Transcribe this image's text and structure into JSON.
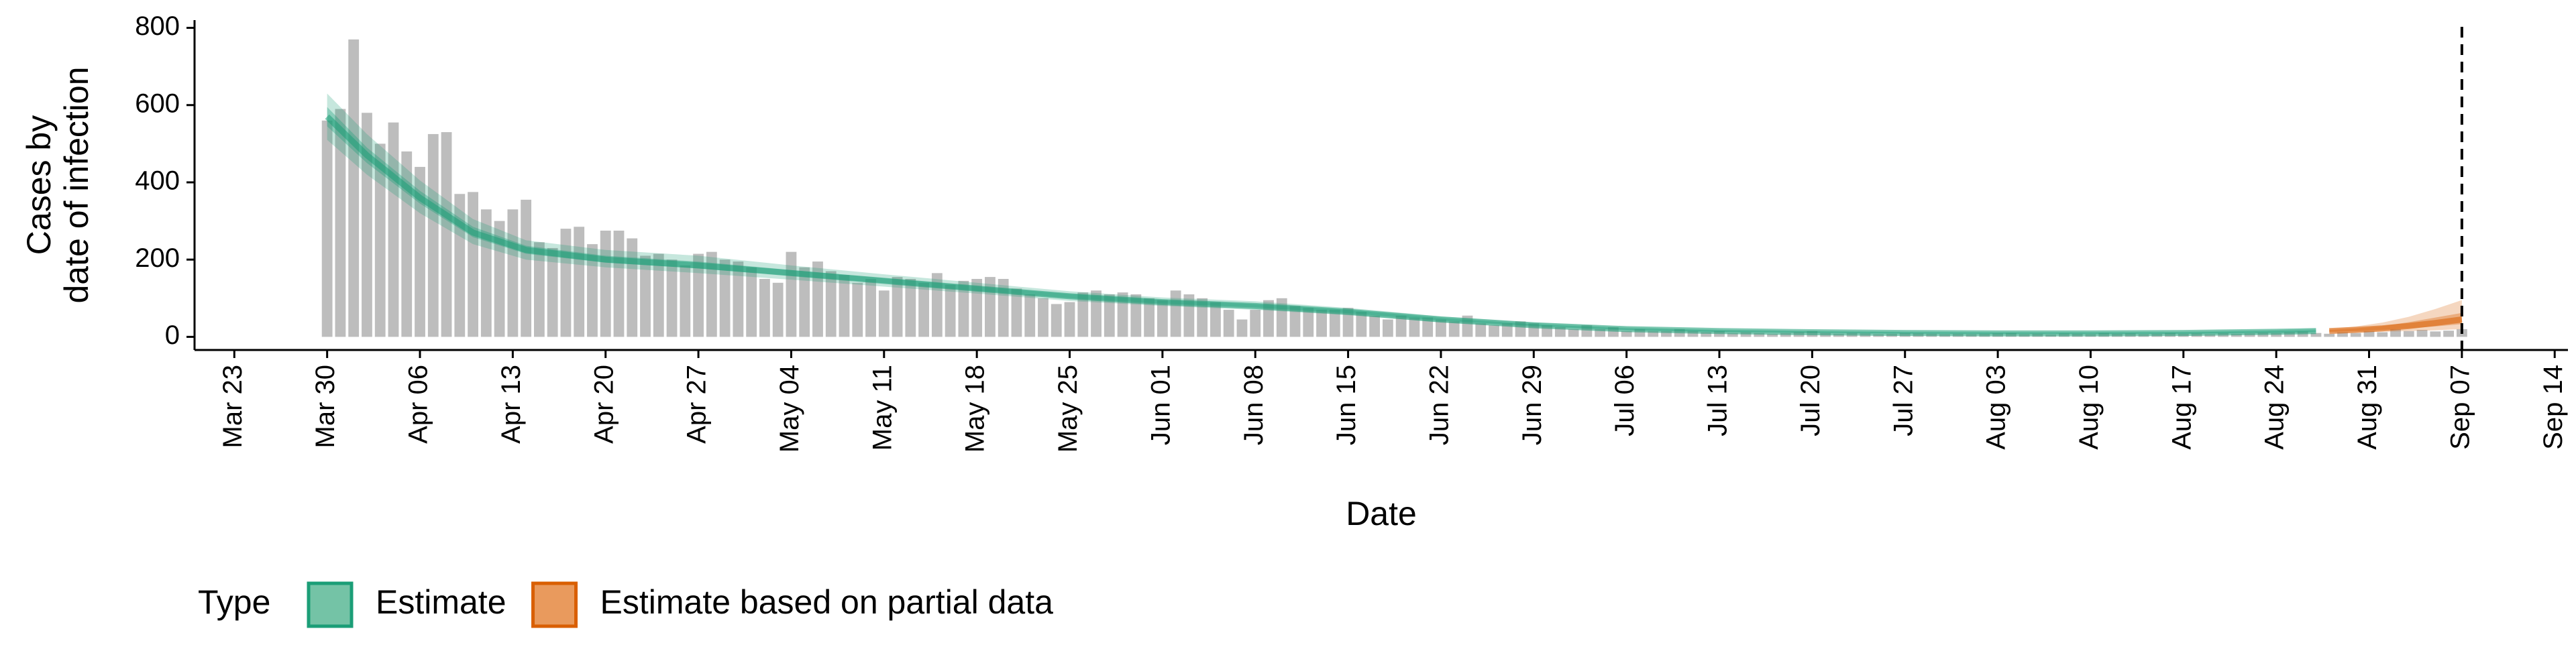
{
  "chart_data": {
    "type": "bar",
    "xlabel": "Date",
    "ylabel": [
      "Cases by",
      "date of infection"
    ],
    "legend_title": "Type",
    "bar_color": "#bdbdbd",
    "x": [
      "Mar 30",
      "Mar 31",
      "Apr 01",
      "Apr 02",
      "Apr 03",
      "Apr 04",
      "Apr 05",
      "Apr 06",
      "Apr 07",
      "Apr 08",
      "Apr 09",
      "Apr 10",
      "Apr 11",
      "Apr 12",
      "Apr 13",
      "Apr 14",
      "Apr 15",
      "Apr 16",
      "Apr 17",
      "Apr 18",
      "Apr 19",
      "Apr 20",
      "Apr 21",
      "Apr 22",
      "Apr 23",
      "Apr 24",
      "Apr 25",
      "Apr 26",
      "Apr 27",
      "Apr 28",
      "Apr 29",
      "Apr 30",
      "May 01",
      "May 02",
      "May 03",
      "May 04",
      "May 05",
      "May 06",
      "May 07",
      "May 08",
      "May 09",
      "May 10",
      "May 11",
      "May 12",
      "May 13",
      "May 14",
      "May 15",
      "May 16",
      "May 17",
      "May 18",
      "May 19",
      "May 20",
      "May 21",
      "May 22",
      "May 23",
      "May 24",
      "May 25",
      "May 26",
      "May 27",
      "May 28",
      "May 29",
      "May 30",
      "May 31",
      "Jun 01",
      "Jun 02",
      "Jun 03",
      "Jun 04",
      "Jun 05",
      "Jun 06",
      "Jun 07",
      "Jun 08",
      "Jun 09",
      "Jun 10",
      "Jun 11",
      "Jun 12",
      "Jun 13",
      "Jun 14",
      "Jun 15",
      "Jun 16",
      "Jun 17",
      "Jun 18",
      "Jun 19",
      "Jun 20",
      "Jun 21",
      "Jun 22",
      "Jun 23",
      "Jun 24",
      "Jun 25",
      "Jun 26",
      "Jun 27",
      "Jun 28",
      "Jun 29",
      "Jun 30",
      "Jul 01",
      "Jul 02",
      "Jul 03",
      "Jul 04",
      "Jul 05",
      "Jul 06",
      "Jul 07",
      "Jul 08",
      "Jul 09",
      "Jul 10",
      "Jul 11",
      "Jul 12",
      "Jul 13",
      "Jul 14",
      "Jul 15",
      "Jul 16",
      "Jul 17",
      "Jul 18",
      "Jul 19",
      "Jul 20",
      "Jul 21",
      "Jul 22",
      "Jul 23",
      "Jul 24",
      "Jul 25",
      "Jul 26",
      "Jul 27",
      "Jul 28",
      "Jul 29",
      "Jul 30",
      "Jul 31",
      "Aug 01",
      "Aug 02",
      "Aug 03",
      "Aug 04",
      "Aug 05",
      "Aug 06",
      "Aug 07",
      "Aug 08",
      "Aug 09",
      "Aug 10",
      "Aug 11",
      "Aug 12",
      "Aug 13",
      "Aug 14",
      "Aug 15",
      "Aug 16",
      "Aug 17",
      "Aug 18",
      "Aug 19",
      "Aug 20",
      "Aug 21",
      "Aug 22",
      "Aug 23",
      "Aug 24",
      "Aug 25",
      "Aug 26",
      "Aug 27",
      "Aug 28",
      "Aug 29",
      "Aug 30",
      "Aug 31",
      "Sep 01",
      "Sep 02",
      "Sep 03",
      "Sep 04",
      "Sep 05",
      "Sep 06",
      "Sep 07"
    ],
    "values": [
      560,
      590,
      770,
      580,
      500,
      555,
      480,
      440,
      525,
      530,
      370,
      375,
      330,
      300,
      330,
      355,
      245,
      230,
      280,
      285,
      240,
      275,
      275,
      255,
      210,
      215,
      200,
      185,
      215,
      220,
      200,
      195,
      180,
      150,
      140,
      220,
      180,
      195,
      170,
      160,
      140,
      150,
      120,
      155,
      150,
      140,
      165,
      135,
      145,
      150,
      155,
      150,
      125,
      110,
      100,
      85,
      90,
      115,
      120,
      110,
      115,
      110,
      100,
      95,
      120,
      110,
      100,
      90,
      70,
      45,
      70,
      95,
      100,
      80,
      75,
      70,
      70,
      75,
      65,
      55,
      45,
      55,
      50,
      50,
      45,
      40,
      55,
      35,
      30,
      35,
      40,
      35,
      30,
      25,
      20,
      30,
      20,
      25,
      15,
      20,
      15,
      15,
      20,
      15,
      12,
      15,
      10,
      12,
      10,
      8,
      10,
      12,
      15,
      10,
      8,
      10,
      9,
      7,
      8,
      10,
      9,
      8,
      7,
      8,
      7,
      8,
      9,
      10,
      7,
      8,
      6,
      9,
      8,
      7,
      10,
      8,
      9,
      7,
      8,
      10,
      8,
      9,
      7,
      10,
      8,
      9,
      11,
      10,
      12,
      14,
      10,
      8,
      12,
      10,
      15,
      12,
      20,
      15,
      18,
      14,
      16,
      20
    ],
    "series": [
      {
        "name": "Estimate",
        "color": "#1b9e77",
        "legend_color": "#74c3a6",
        "x": [
          "Mar 30",
          "Apr 02",
          "Apr 06",
          "Apr 10",
          "Apr 14",
          "Apr 20",
          "Apr 27",
          "May 04",
          "May 11",
          "May 18",
          "May 25",
          "Jun 01",
          "Jun 08",
          "Jun 15",
          "Jun 22",
          "Jun 29",
          "Jul 06",
          "Jul 13",
          "Jul 20",
          "Jul 27",
          "Aug 03",
          "Aug 10",
          "Aug 17",
          "Aug 24",
          "Aug 27"
        ],
        "values": [
          570,
          470,
          360,
          270,
          225,
          200,
          185,
          165,
          145,
          125,
          105,
          90,
          80,
          65,
          45,
          30,
          20,
          15,
          12,
          10,
          9,
          9,
          10,
          13,
          15
        ],
        "lower": [
          510,
          420,
          320,
          240,
          200,
          180,
          165,
          148,
          130,
          112,
          93,
          80,
          70,
          56,
          38,
          25,
          16,
          11,
          9,
          7,
          6,
          6,
          7,
          9,
          10
        ],
        "upper": [
          630,
          525,
          405,
          305,
          250,
          225,
          210,
          185,
          162,
          140,
          118,
          102,
          92,
          75,
          53,
          37,
          25,
          19,
          16,
          14,
          13,
          13,
          14,
          18,
          21
        ],
        "lower_50": [
          545,
          450,
          345,
          258,
          215,
          192,
          177,
          158,
          139,
          119,
          100,
          86,
          76,
          61,
          42,
          28,
          18,
          13,
          11,
          9,
          8,
          8,
          8,
          11,
          13
        ],
        "upper_50": [
          595,
          490,
          378,
          285,
          236,
          210,
          195,
          173,
          152,
          131,
          111,
          95,
          85,
          70,
          49,
          33,
          22,
          17,
          14,
          12,
          11,
          11,
          12,
          15,
          17
        ]
      },
      {
        "name": "Estimate based on partial data",
        "color": "#d95f02",
        "legend_color": "#e99a5d",
        "x": [
          "Aug 28",
          "Aug 30",
          "Sep 01",
          "Sep 03",
          "Sep 05",
          "Sep 07"
        ],
        "values": [
          15,
          18,
          22,
          28,
          36,
          45
        ],
        "lower": [
          10,
          11,
          13,
          15,
          17,
          20
        ],
        "upper": [
          21,
          27,
          37,
          52,
          72,
          95
        ],
        "lower_50": [
          13,
          15,
          18,
          22,
          27,
          33
        ],
        "upper_50": [
          18,
          22,
          28,
          38,
          50,
          62
        ]
      }
    ],
    "vline": "Sep 07",
    "xlim": [
      "Mar 20",
      "Sep 15"
    ],
    "xticks": [
      "Mar 23",
      "Mar 30",
      "Apr 06",
      "Apr 13",
      "Apr 20",
      "Apr 27",
      "May 04",
      "May 11",
      "May 18",
      "May 25",
      "Jun 01",
      "Jun 08",
      "Jun 15",
      "Jun 22",
      "Jun 29",
      "Jul 06",
      "Jul 13",
      "Jul 20",
      "Jul 27",
      "Aug 03",
      "Aug 10",
      "Aug 17",
      "Aug 24",
      "Aug 31",
      "Sep 07",
      "Sep 14"
    ],
    "ylim": [
      -34,
      820
    ],
    "yticks": [
      0,
      200,
      400,
      600,
      800
    ],
    "grid": false
  }
}
